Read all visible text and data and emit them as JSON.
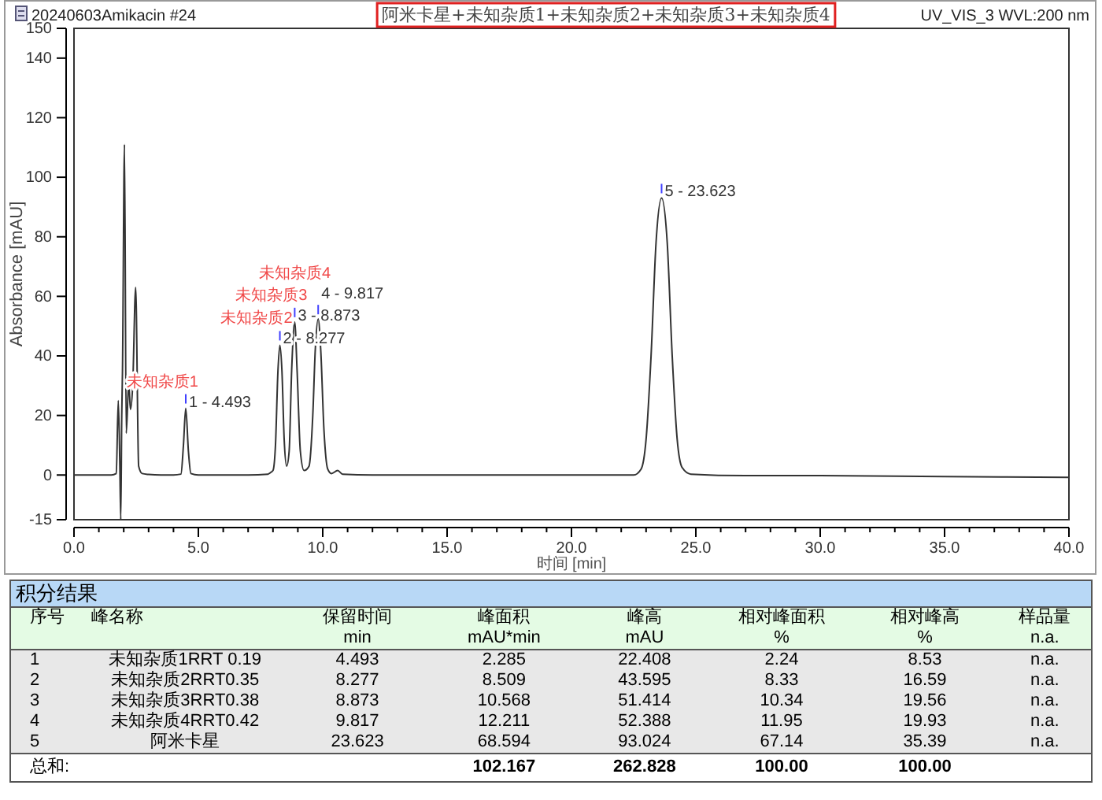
{
  "chart_data": [
    {
      "type": "line",
      "title": "阿米卡星+未知杂质1+未知杂质2+未知杂质3+未知杂质4",
      "subtitle": "UV_VIS_3 WVL:200 nm",
      "xlabel": "时间 [min]",
      "ylabel": "Absorbance [mAU]",
      "x": [
        0,
        0.5,
        1.0,
        1.5,
        1.7,
        1.78,
        1.84,
        1.88,
        1.92,
        1.95,
        2.03,
        2.1,
        2.2,
        2.27,
        2.36,
        2.48,
        2.6,
        2.74,
        3.0,
        3.5,
        4.0,
        4.3,
        4.4,
        4.493,
        4.6,
        4.7,
        5.0,
        6.0,
        7.0,
        7.8,
        7.9,
        8.0,
        8.1,
        8.2,
        8.277,
        8.36,
        8.45,
        8.55,
        8.65,
        8.75,
        8.873,
        8.97,
        9.1,
        9.25,
        9.45,
        9.6,
        9.7,
        9.817,
        9.92,
        10.05,
        10.2,
        10.35,
        10.6,
        10.8,
        12.0,
        15.0,
        18.0,
        20.0,
        22.5,
        22.8,
        23.0,
        23.2,
        23.4,
        23.623,
        23.85,
        24.05,
        24.25,
        24.45,
        24.8,
        27.0,
        30.0,
        35.0,
        40.0
      ],
      "series": [
        {
          "color": "#333333",
          "values": [
            0,
            0,
            0,
            0,
            0.5,
            25,
            5,
            -15,
            20,
            35,
            111,
            14,
            31,
            22,
            30,
            63,
            3,
            0.5,
            0.2,
            0,
            0,
            0.3,
            10,
            22.4,
            8,
            0.5,
            0,
            0,
            0,
            0.3,
            0.8,
            1.5,
            10,
            35,
            43.6,
            35,
            12,
            3,
            8,
            35,
            51.4,
            35,
            8,
            1.5,
            3,
            20,
            42,
            52.4,
            42,
            15,
            2,
            0.5,
            1.5,
            0.3,
            0,
            0,
            0,
            0,
            0,
            2,
            12,
            40,
            78,
            93.0,
            78,
            40,
            12,
            2.5,
            0.3,
            -0.2,
            -0.2,
            -0.5,
            -0.8
          ]
        }
      ],
      "xlim": [
        0,
        40
      ],
      "ylim": [
        -15,
        150
      ],
      "xticks": [
        {
          "value": 0,
          "label": "0.0"
        },
        {
          "value": 1,
          "label": null
        },
        {
          "value": 2,
          "label": null
        },
        {
          "value": 3,
          "label": null
        },
        {
          "value": 4,
          "label": null
        },
        {
          "value": 5,
          "label": "5.0"
        },
        {
          "value": 6,
          "label": null
        },
        {
          "value": 7,
          "label": null
        },
        {
          "value": 8,
          "label": null
        },
        {
          "value": 9,
          "label": null
        },
        {
          "value": 10,
          "label": "10.0"
        },
        {
          "value": 11,
          "label": null
        },
        {
          "value": 12,
          "label": null
        },
        {
          "value": 13,
          "label": null
        },
        {
          "value": 14,
          "label": null
        },
        {
          "value": 15,
          "label": "15.0"
        },
        {
          "value": 16,
          "label": null
        },
        {
          "value": 17,
          "label": null
        },
        {
          "value": 18,
          "label": null
        },
        {
          "value": 19,
          "label": null
        },
        {
          "value": 20,
          "label": "20.0"
        },
        {
          "value": 21,
          "label": null
        },
        {
          "value": 22,
          "label": null
        },
        {
          "value": 23,
          "label": null
        },
        {
          "value": 24,
          "label": null
        },
        {
          "value": 25,
          "label": "25.0"
        },
        {
          "value": 26,
          "label": null
        },
        {
          "value": 27,
          "label": null
        },
        {
          "value": 28,
          "label": null
        },
        {
          "value": 29,
          "label": null
        },
        {
          "value": 30,
          "label": "30.0"
        },
        {
          "value": 31,
          "label": null
        },
        {
          "value": 32,
          "label": null
        },
        {
          "value": 33,
          "label": null
        },
        {
          "value": 34,
          "label": null
        },
        {
          "value": 35,
          "label": "35.0"
        },
        {
          "value": 36,
          "label": null
        },
        {
          "value": 37,
          "label": null
        },
        {
          "value": 38,
          "label": null
        },
        {
          "value": 39,
          "label": null
        },
        {
          "value": 40,
          "label": "40.0"
        }
      ],
      "yticks": [
        -15,
        0,
        20,
        40,
        60,
        80,
        100,
        120,
        140,
        150
      ],
      "grid": false,
      "marker": "none",
      "line_style": "solid",
      "annotations": [
        "20240603Amikacin #24",
        {
          "text": "1 - 4.493",
          "x": 4.493,
          "y": 22.408
        },
        {
          "text": "未知杂质1",
          "x": 4.493,
          "y": 22.408
        },
        {
          "text": "2 - 8.277",
          "x": 8.277,
          "y": 43.595
        },
        {
          "text": "未知杂质2",
          "x": 8.277,
          "y": 43.595
        },
        {
          "text": "3 - 8.873",
          "x": 8.873,
          "y": 51.414
        },
        {
          "text": "未知杂质3",
          "x": 8.873,
          "y": 51.414
        },
        {
          "text": "4 - 9.817",
          "x": 9.817,
          "y": 52.388
        },
        {
          "text": "未知杂质4",
          "x": 9.817,
          "y": 52.388
        },
        {
          "text": "5 - 23.623",
          "x": 23.623,
          "y": 93.024
        },
        "积分结果",
        "序号",
        "峰名称",
        "保留时间",
        "峰面积",
        "峰高",
        "相对峰面积",
        "相对峰高",
        "样品量",
        "min",
        "mAU*min",
        "mAU",
        "%",
        "%",
        "n.a.",
        "1",
        "未知杂质1RRT 0.19",
        "4.493",
        "2.285",
        "22.408",
        "2.24",
        "8.53",
        "n.a.",
        "2",
        "未知杂质2RRT0.35",
        "8.277",
        "8.509",
        "43.595",
        "8.33",
        "16.59",
        "n.a.",
        "3",
        "未知杂质3RRT0.38",
        "8.873",
        "10.568",
        "51.414",
        "10.34",
        "19.56",
        "n.a.",
        "4",
        "未知杂质4RRT0.42",
        "9.817",
        "12.211",
        "52.388",
        "11.95",
        "19.93",
        "n.a.",
        "5",
        "阿米卡星",
        "23.623",
        "68.594",
        "93.024",
        "67.14",
        "35.39",
        "n.a.",
        "总和:",
        "102.167",
        "262.828",
        "100.00",
        "100.00"
      ]
    }
  ]
}
